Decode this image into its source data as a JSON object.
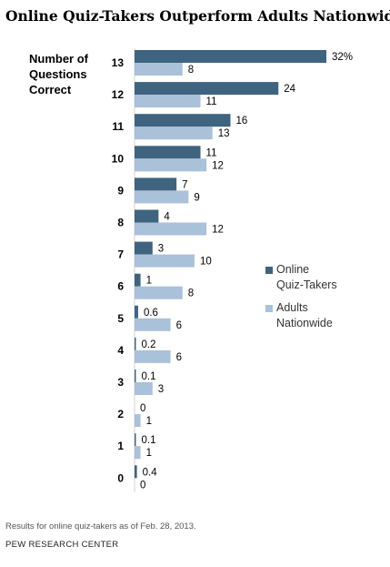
{
  "title": "Online Quiz-Takers Outperform Adults Nationwide",
  "note": "Results for online quiz-takers as of Feb. 28, 2013.",
  "source": "PEW RESEARCH CENTER",
  "colors": {
    "online": "#3f6480",
    "adults": "#a9c1d9"
  },
  "chart_data": {
    "type": "bar",
    "orientation": "horizontal",
    "ylabel_lines": [
      "Number of",
      "Questions",
      "Correct"
    ],
    "categories": [
      "13",
      "12",
      "11",
      "10",
      "9",
      "8",
      "7",
      "6",
      "5",
      "4",
      "3",
      "2",
      "1",
      "0"
    ],
    "series": [
      {
        "name_lines": [
          "Online",
          "Quiz-Takers"
        ],
        "values": [
          32,
          24,
          16,
          11,
          7,
          4,
          3,
          1,
          0.6,
          0.2,
          0.1,
          0,
          0.1,
          0.4
        ],
        "labels": [
          "32%",
          "24",
          "16",
          "11",
          "7",
          "4",
          "3",
          "1",
          "0.6",
          "0.2",
          "0.1",
          "0",
          "0.1",
          "0.4"
        ]
      },
      {
        "name_lines": [
          "Adults",
          "Nationwide"
        ],
        "values": [
          8,
          11,
          13,
          12,
          9,
          12,
          10,
          8,
          6,
          6,
          3,
          1,
          1,
          0
        ],
        "labels": [
          "8",
          "11",
          "13",
          "12",
          "9",
          "12",
          "10",
          "8",
          "6",
          "6",
          "3",
          "1",
          "1",
          "0"
        ]
      }
    ],
    "xlim": [
      0,
      32
    ],
    "grid": false,
    "legend_position": "right"
  }
}
